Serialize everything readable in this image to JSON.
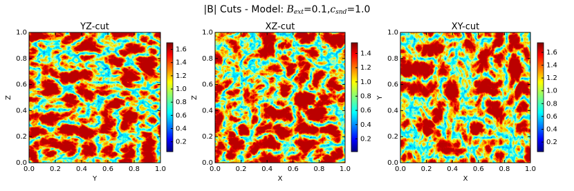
{
  "title": {
    "text": "|B| Cuts - Model: ",
    "b": "B",
    "b_sub": "ext",
    "b_rest": "=0.1,",
    "c": "c",
    "c_sub": "snd",
    "c_rest": "=1.0"
  },
  "chart_data": [
    {
      "type": "heatmap",
      "title": "YZ-cut",
      "xlabel": "Y",
      "ylabel": "Z",
      "colormap": "jet",
      "xlim": [
        0,
        1
      ],
      "ylim": [
        0,
        1
      ],
      "xticks": [
        {
          "value": 0,
          "label": "0.0"
        },
        0.2,
        0.4,
        0.6,
        0.8,
        {
          "value": 1,
          "label": "1.0"
        }
      ],
      "yticks": [
        {
          "value": 0,
          "label": "0.0"
        },
        0.2,
        0.4,
        0.6,
        0.8,
        {
          "value": 1,
          "label": "1.0"
        }
      ],
      "colorbar": {
        "lim": [
          0.05,
          1.7
        ],
        "ticks": [
          0.2,
          0.4,
          0.6,
          0.8,
          {
            "value": 1,
            "label": "1.0"
          },
          1.2,
          1.4,
          1.6
        ]
      }
    },
    {
      "type": "heatmap",
      "title": "XZ-cut",
      "xlabel": "X",
      "ylabel": "Z",
      "colormap": "jet",
      "xlim": [
        0,
        1
      ],
      "ylim": [
        0,
        1
      ],
      "xticks": [
        {
          "value": 0,
          "label": "0.0"
        },
        0.2,
        0.4,
        0.6,
        0.8,
        {
          "value": 1,
          "label": "1.0"
        }
      ],
      "yticks": [
        {
          "value": 0,
          "label": "0.0"
        },
        0.2,
        0.4,
        0.6,
        0.8,
        {
          "value": 1,
          "label": "1.0"
        }
      ],
      "colorbar": {
        "lim": [
          0.02,
          1.55
        ],
        "ticks": [
          0.2,
          0.4,
          0.6,
          0.8,
          {
            "value": 1,
            "label": "1.0"
          },
          1.2,
          1.4
        ]
      }
    },
    {
      "type": "heatmap",
      "title": "XY-cut",
      "xlabel": "X",
      "ylabel": "Y",
      "colormap": "jet",
      "xlim": [
        0,
        1
      ],
      "ylim": [
        0,
        1
      ],
      "xticks": [
        {
          "value": 0,
          "label": "0.0"
        },
        0.2,
        0.4,
        0.6,
        0.8,
        {
          "value": 1,
          "label": "1.0"
        }
      ],
      "yticks": [
        {
          "value": 0,
          "label": "0.0"
        },
        0.2,
        0.4,
        0.6,
        0.8,
        {
          "value": 1,
          "label": "1.0"
        }
      ],
      "colorbar": {
        "lim": [
          0.05,
          1.75
        ],
        "ticks": [
          0.2,
          0.4,
          0.6,
          0.8,
          {
            "value": 1,
            "label": "1.0"
          },
          1.2,
          1.4,
          1.6
        ]
      }
    }
  ]
}
